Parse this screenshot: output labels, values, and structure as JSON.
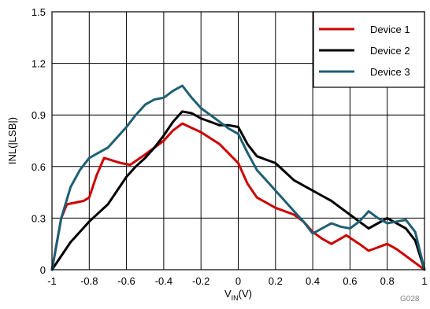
{
  "chart_data": {
    "type": "line",
    "xlabel_main": "V",
    "xlabel_sub": "IN",
    "xlabel_unit": "(V)",
    "ylabel": "INL(|LSB|)",
    "code": "G028",
    "xlim": [
      -1,
      1
    ],
    "ylim": [
      0,
      1.5
    ],
    "xticks": [
      -1,
      -0.8,
      -0.6,
      -0.4,
      -0.2,
      0,
      0.2,
      0.4,
      0.6,
      0.8,
      1
    ],
    "yticks": [
      0,
      0.3,
      0.6,
      0.9,
      1.2,
      1.5
    ],
    "xtick_labels": [
      "-1",
      "-0.8",
      "-0.6",
      "-0.4",
      "-0.2",
      "0",
      "0.2",
      "0.4",
      "0.6",
      "0.8",
      "1"
    ],
    "ytick_labels": [
      "0",
      "0.3",
      "0.6",
      "0.9",
      "1.2",
      "1.5"
    ],
    "grid": true,
    "legend_position": "top-right",
    "series": [
      {
        "name": "Device 1",
        "color": "#cc0000",
        "x": [
          -1,
          -0.95,
          -0.92,
          -0.83,
          -0.8,
          -0.76,
          -0.72,
          -0.69,
          -0.63,
          -0.58,
          -0.5,
          -0.4,
          -0.35,
          -0.3,
          -0.2,
          -0.1,
          0,
          0.05,
          0.1,
          0.15,
          0.2,
          0.3,
          0.35,
          0.4,
          0.45,
          0.5,
          0.58,
          0.65,
          0.7,
          0.75,
          0.8,
          0.85,
          0.9,
          0.95,
          1
        ],
        "values": [
          0,
          0.3,
          0.38,
          0.4,
          0.42,
          0.55,
          0.65,
          0.64,
          0.62,
          0.61,
          0.67,
          0.75,
          0.81,
          0.85,
          0.8,
          0.73,
          0.62,
          0.5,
          0.42,
          0.39,
          0.36,
          0.32,
          0.28,
          0.22,
          0.18,
          0.15,
          0.2,
          0.15,
          0.11,
          0.13,
          0.15,
          0.12,
          0.08,
          0.04,
          0
        ]
      },
      {
        "name": "Device 2",
        "color": "#000000",
        "x": [
          -1,
          -0.95,
          -0.9,
          -0.85,
          -0.8,
          -0.75,
          -0.7,
          -0.65,
          -0.6,
          -0.55,
          -0.5,
          -0.45,
          -0.4,
          -0.35,
          -0.3,
          -0.25,
          -0.2,
          -0.15,
          -0.1,
          -0.05,
          0,
          0.05,
          0.1,
          0.15,
          0.2,
          0.25,
          0.3,
          0.35,
          0.4,
          0.45,
          0.5,
          0.55,
          0.6,
          0.65,
          0.7,
          0.75,
          0.8,
          0.85,
          0.9,
          0.95,
          1
        ],
        "values": [
          0,
          0.08,
          0.16,
          0.22,
          0.28,
          0.33,
          0.38,
          0.46,
          0.54,
          0.6,
          0.65,
          0.71,
          0.78,
          0.86,
          0.92,
          0.91,
          0.88,
          0.86,
          0.84,
          0.84,
          0.83,
          0.73,
          0.66,
          0.64,
          0.62,
          0.57,
          0.52,
          0.49,
          0.46,
          0.43,
          0.4,
          0.36,
          0.32,
          0.28,
          0.24,
          0.27,
          0.3,
          0.27,
          0.24,
          0.17,
          0
        ]
      },
      {
        "name": "Device 3",
        "color": "#1f5f73",
        "x": [
          -1,
          -0.95,
          -0.9,
          -0.85,
          -0.8,
          -0.75,
          -0.7,
          -0.65,
          -0.6,
          -0.55,
          -0.5,
          -0.45,
          -0.4,
          -0.35,
          -0.3,
          -0.25,
          -0.2,
          -0.15,
          -0.1,
          -0.05,
          0,
          0.05,
          0.1,
          0.15,
          0.2,
          0.25,
          0.3,
          0.35,
          0.4,
          0.45,
          0.5,
          0.55,
          0.6,
          0.65,
          0.7,
          0.75,
          0.8,
          0.85,
          0.9,
          0.95,
          1
        ],
        "values": [
          0,
          0.3,
          0.48,
          0.58,
          0.65,
          0.68,
          0.71,
          0.77,
          0.83,
          0.9,
          0.96,
          0.99,
          1.0,
          1.04,
          1.07,
          1.0,
          0.94,
          0.9,
          0.86,
          0.82,
          0.79,
          0.68,
          0.58,
          0.52,
          0.46,
          0.4,
          0.34,
          0.28,
          0.21,
          0.24,
          0.27,
          0.25,
          0.24,
          0.28,
          0.34,
          0.3,
          0.27,
          0.28,
          0.29,
          0.22,
          0.0
        ]
      }
    ]
  }
}
